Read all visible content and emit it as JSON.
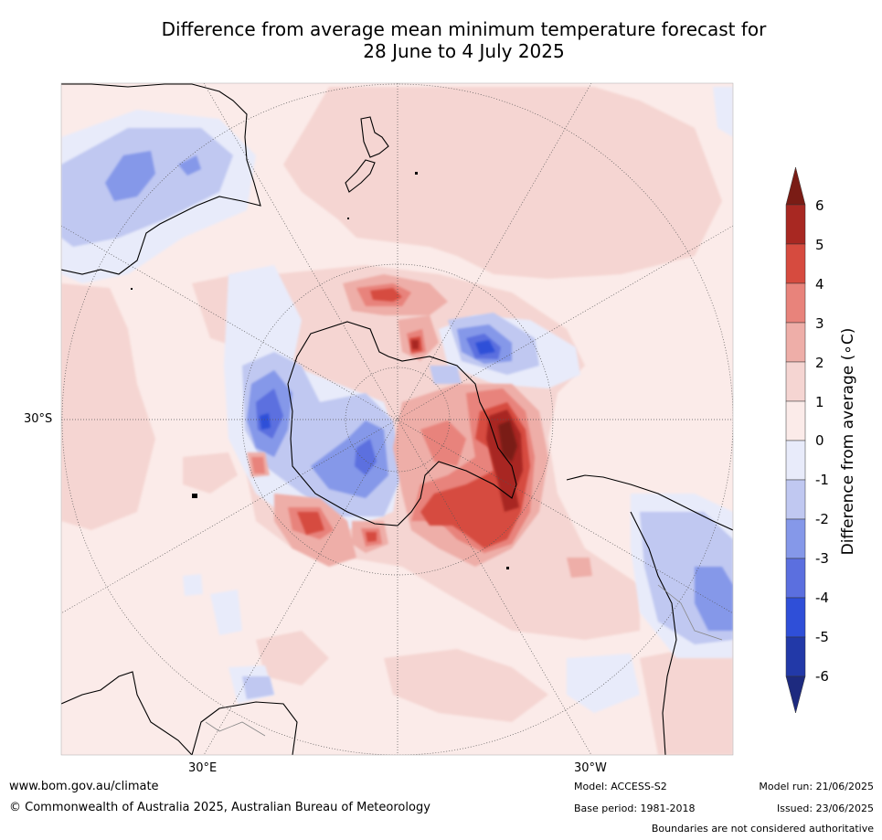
{
  "title_line1": "Difference from average mean minimum temperature forecast for",
  "title_line2": "28 June to 4 July 2025",
  "colorbar": {
    "label": "Difference from average (∘C)",
    "ticks": [
      "6",
      "5",
      "4",
      "3",
      "2",
      "1",
      "0",
      "-1",
      "-2",
      "-3",
      "-4",
      "-5",
      "-6"
    ],
    "colors": {
      "above_6": "#7a1c15",
      "5_to_6": "#a82822",
      "4_to_5": "#d64b3f",
      "3_to_4": "#e8837b",
      "2_to_3": "#eeaea8",
      "1_to_2": "#f5d5d2",
      "0_to_1": "#fbebe9",
      "m1_to_0": "#e8ebfa",
      "m2_to_m1": "#c0c8f1",
      "m3_to_m2": "#8598e9",
      "m4_to_m3": "#5b6fdf",
      "m5_to_m4": "#2f4fd8",
      "m6_to_m5": "#2239a8",
      "below_m6": "#1d2a7f"
    }
  },
  "labels": {
    "lat_30s": "30°S",
    "lon_30e": "30°E",
    "lon_30w": "30°W"
  },
  "footer": {
    "website": "www.bom.gov.au/climate",
    "copyright": "© Commonwealth of Australia 2025, Australian Bureau of Meteorology",
    "model": "Model: ACCESS-S2",
    "base_period": "Base period: 1981-2018",
    "model_run": "Model run: 21/06/2025",
    "issued": "Issued: 23/06/2025",
    "disclaimer": "Boundaries are not considered authoritative"
  }
}
